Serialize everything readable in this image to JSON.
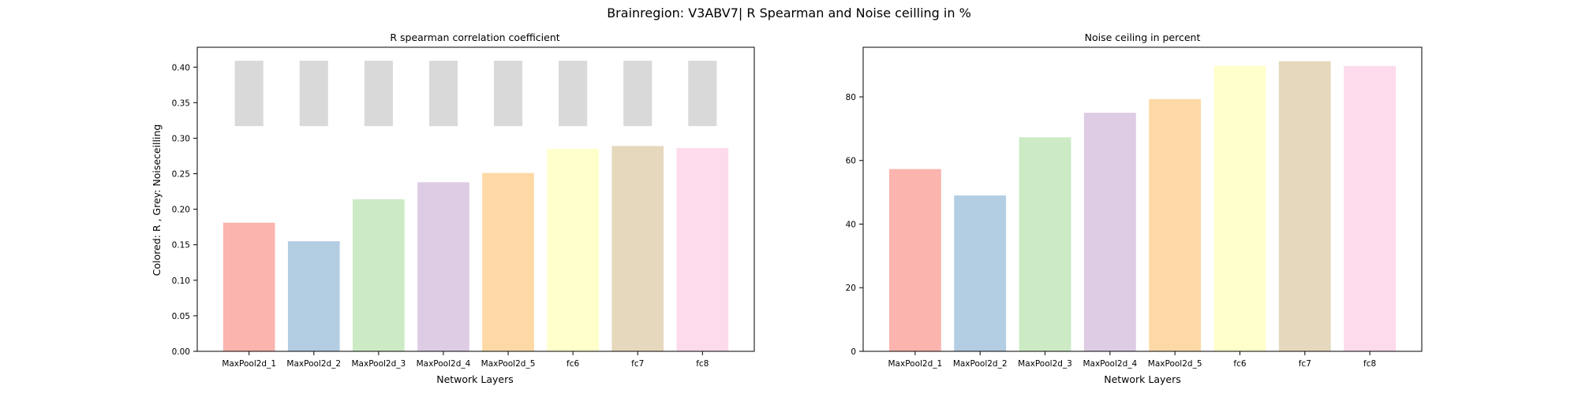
{
  "figure_title": "Brainregion: V3ABV7| R Spearman and Noise ceilling in %",
  "colors": [
    "#fbb4ae",
    "#b3cde3",
    "#ccebc5",
    "#decbe4",
    "#fed9a6",
    "#ffffcc",
    "#e5d8bd",
    "#fddaec"
  ],
  "grey_color": "#d9d9d9",
  "chart_data": [
    {
      "type": "bar",
      "title": "R spearman correlation coefficient",
      "xlabel": "Network Layers",
      "ylabel": "Colored: R , Grey: Noiseceilling",
      "categories": [
        "MaxPool2d_1",
        "MaxPool2d_2",
        "MaxPool2d_3",
        "MaxPool2d_4",
        "MaxPool2d_5",
        "fc6",
        "fc7",
        "fc8"
      ],
      "series": [
        {
          "name": "R",
          "values": [
            0.181,
            0.155,
            0.214,
            0.238,
            0.251,
            0.285,
            0.289,
            0.286
          ]
        },
        {
          "name": "Noiseceilling",
          "type": "range",
          "values": [
            [
              0.317,
              0.409
            ],
            [
              0.317,
              0.409
            ],
            [
              0.317,
              0.409
            ],
            [
              0.317,
              0.409
            ],
            [
              0.317,
              0.409
            ],
            [
              0.317,
              0.409
            ],
            [
              0.317,
              0.409
            ],
            [
              0.317,
              0.409
            ]
          ]
        }
      ],
      "ylim": [
        0,
        0.428
      ],
      "yticks": [
        0.0,
        0.05,
        0.1,
        0.15,
        0.2,
        0.25,
        0.3,
        0.35,
        0.4
      ],
      "yticklabels": [
        "0.00",
        "0.05",
        "0.10",
        "0.15",
        "0.20",
        "0.25",
        "0.30",
        "0.35",
        "0.40"
      ],
      "grid": false,
      "legend": "none"
    },
    {
      "type": "bar",
      "title": "Noise ceiling in percent",
      "xlabel": "Network Layers",
      "ylabel": "",
      "categories": [
        "MaxPool2d_1",
        "MaxPool2d_2",
        "MaxPool2d_3",
        "MaxPool2d_4",
        "MaxPool2d_5",
        "fc6",
        "fc7",
        "fc8"
      ],
      "values": [
        57.3,
        49.0,
        67.3,
        75.0,
        79.3,
        89.8,
        91.2,
        89.7
      ],
      "ylim": [
        0,
        95.6
      ],
      "yticks": [
        0,
        20,
        40,
        60,
        80
      ],
      "yticklabels": [
        "0",
        "20",
        "40",
        "60",
        "80"
      ],
      "grid": false,
      "legend": "none"
    }
  ]
}
